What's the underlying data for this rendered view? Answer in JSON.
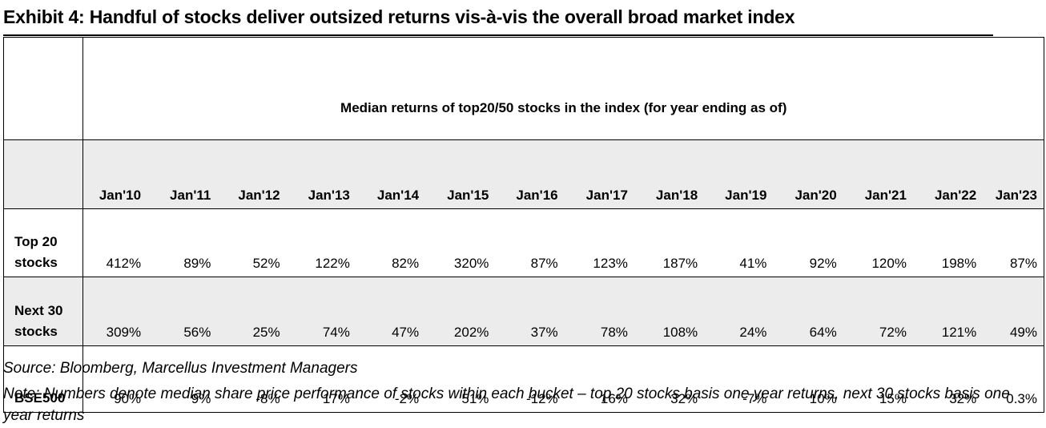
{
  "exhibit": {
    "title": "Exhibit 4: Handful of stocks deliver outsized returns vis-à-vis the overall broad market index",
    "banner": "Median returns of top20/50 stocks in the index (for year ending as of)",
    "columns": [
      "Jan'10",
      "Jan'11",
      "Jan'12",
      "Jan'13",
      "Jan'14",
      "Jan'15",
      "Jan'16",
      "Jan'17",
      "Jan'18",
      "Jan'19",
      "Jan'20",
      "Jan'21",
      "Jan'22",
      "Jan'23"
    ],
    "rows": [
      {
        "label_line1": "Top 20",
        "label_line2": "stocks",
        "values": [
          "412%",
          "89%",
          "52%",
          "122%",
          "82%",
          "320%",
          "87%",
          "123%",
          "187%",
          "41%",
          "92%",
          "120%",
          "198%",
          "87%"
        ]
      },
      {
        "label_line1": "Next 30",
        "label_line2": "stocks",
        "values": [
          "309%",
          "56%",
          "25%",
          "74%",
          "47%",
          "202%",
          "37%",
          "78%",
          "108%",
          "24%",
          "64%",
          "72%",
          "121%",
          "49%"
        ]
      },
      {
        "label_line1": "",
        "label_line2": "BSE500",
        "values": [
          "90%",
          "9%",
          "-8%",
          "17%",
          "-2%",
          "51%",
          "-12%",
          "16%",
          "32%",
          "-7%",
          "10%",
          "15%",
          "32%",
          "0.3%"
        ]
      }
    ],
    "source": "Source: Bloomberg, Marcellus Investment Managers",
    "note": "Note: Numbers denote median share price performance of stocks within each bucket – top 20 stocks basis one year returns, next 30 stocks basis one year returns"
  }
}
